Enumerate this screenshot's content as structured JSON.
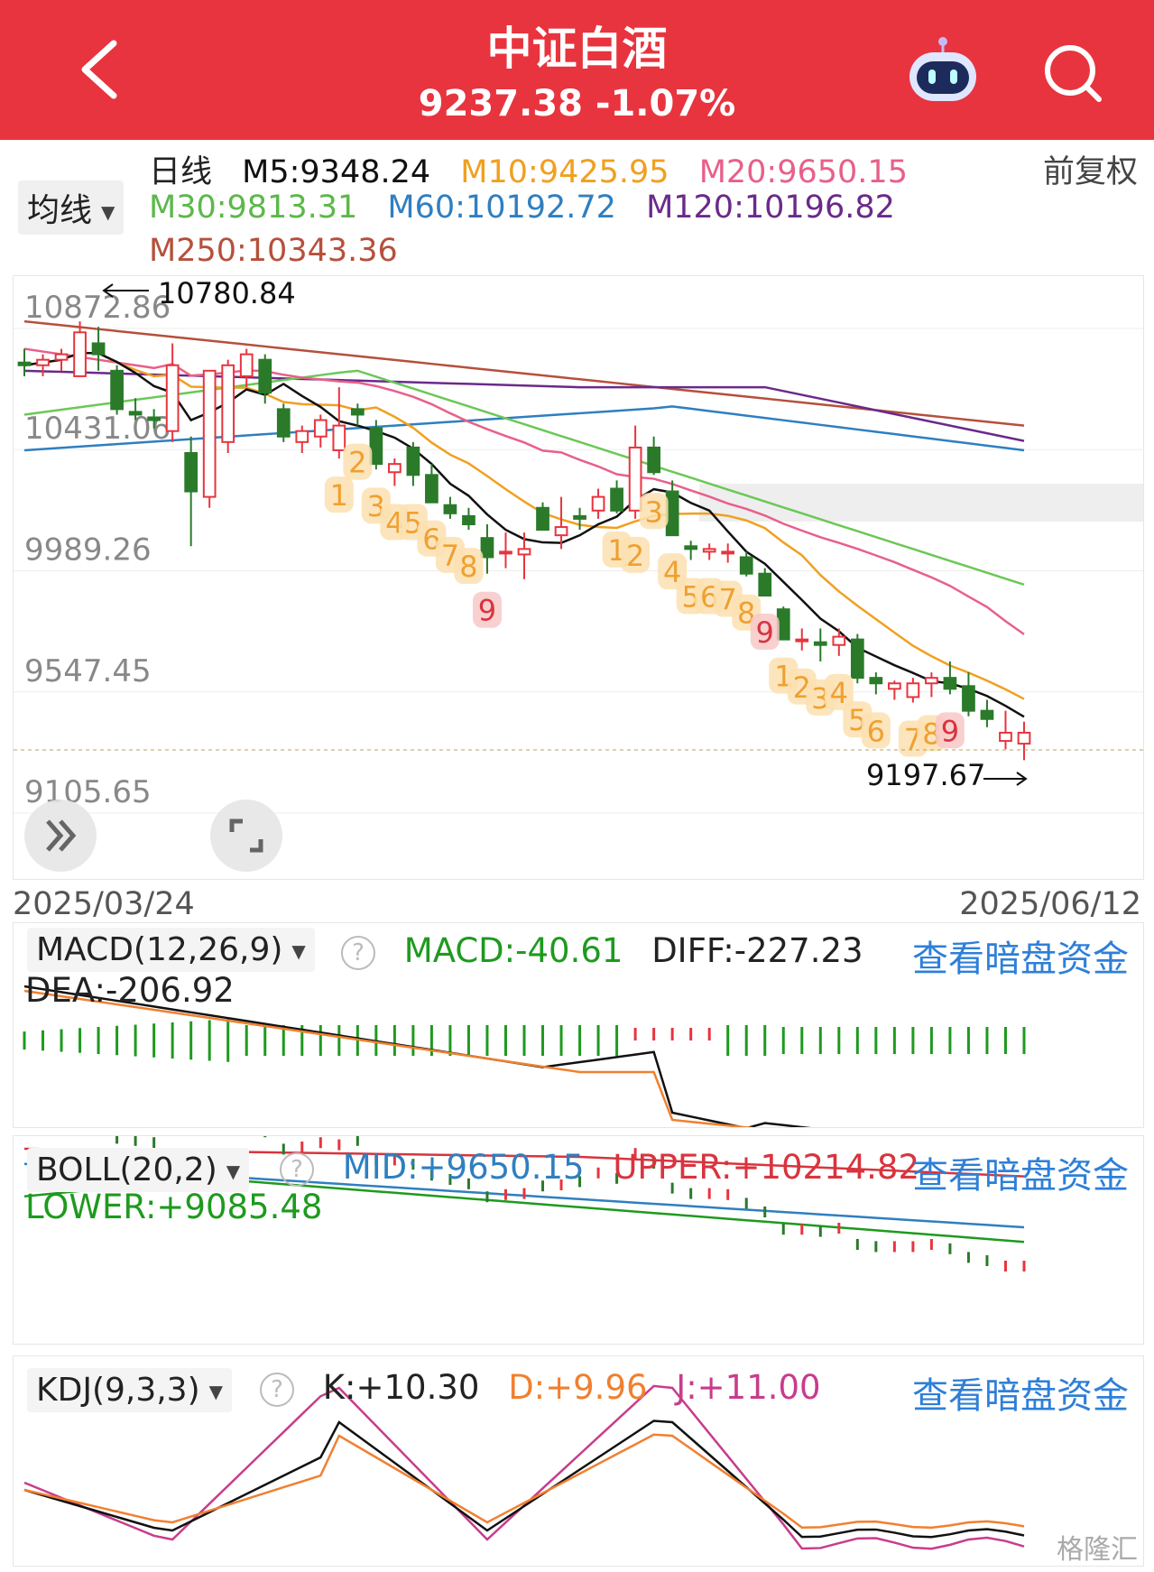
{
  "header": {
    "title": "中证白酒",
    "price": "9237.38",
    "change": "-1.07%"
  },
  "toolbar": {
    "period": "日线",
    "adjust": "前复权",
    "selector": "均线"
  },
  "ma": {
    "m5": "M5:9348.24",
    "m10": "M10:9425.95",
    "m20": "M20:9650.15",
    "m30": "M30:9813.31",
    "m60": "M60:10192.72",
    "m120": "M120:10196.82",
    "m250": "M250:10343.36"
  },
  "colors": {
    "up": "#e8343e",
    "down": "#2a7a2a",
    "m5": "#111111",
    "m10": "#f0a020",
    "m20": "#e8608a",
    "m30": "#6bc856",
    "m60": "#2f7fc0",
    "m120": "#6a2a8a",
    "m250": "#b5503c"
  },
  "chart_data": {
    "type": "candlestick",
    "y_ticks": [
      "10872.86",
      "10431.06",
      "9989.26",
      "9547.45",
      "9105.65"
    ],
    "ylim": [
      9105.65,
      10872.86
    ],
    "high_label": "10780.84",
    "low_label": "9197.67",
    "start_date": "2025/03/24",
    "end_date": "2025/06/12",
    "counts": [
      "1",
      "2",
      "3",
      "4",
      "5",
      "6",
      "7",
      "8",
      "9",
      "1",
      "2",
      "3",
      "4",
      "5",
      "6",
      "7",
      "8",
      "9",
      "1",
      "2",
      "3",
      "4",
      "5",
      "6",
      "7",
      "8",
      "9"
    ],
    "candles": [
      [
        10650,
        10700,
        10600,
        10640
      ],
      [
        10640,
        10680,
        10600,
        10660
      ],
      [
        10660,
        10700,
        10620,
        10680
      ],
      [
        10600,
        10800,
        10600,
        10760
      ],
      [
        10720,
        10780,
        10620,
        10680
      ],
      [
        10620,
        10640,
        10460,
        10480
      ],
      [
        10470,
        10520,
        10440,
        10460
      ],
      [
        10450,
        10480,
        10410,
        10440
      ],
      [
        10400,
        10720,
        10360,
        10640
      ],
      [
        10320,
        10380,
        9980,
        10180
      ],
      [
        10160,
        10620,
        10120,
        10620
      ],
      [
        10360,
        10660,
        10320,
        10640
      ],
      [
        10600,
        10700,
        10560,
        10680
      ],
      [
        10660,
        10680,
        10500,
        10540
      ],
      [
        10480,
        10500,
        10360,
        10380
      ],
      [
        10360,
        10420,
        10320,
        10400
      ],
      [
        10380,
        10460,
        10340,
        10440
      ],
      [
        10330,
        10560,
        10300,
        10420
      ],
      [
        10480,
        10500,
        10420,
        10460
      ],
      [
        10410,
        10440,
        10260,
        10280
      ],
      [
        10250,
        10300,
        10200,
        10280
      ],
      [
        10340,
        10360,
        10200,
        10240
      ],
      [
        10240,
        10280,
        10140,
        10140
      ],
      [
        10130,
        10160,
        10080,
        10100
      ],
      [
        10090,
        10120,
        10040,
        10060
      ],
      [
        10010,
        10060,
        9880,
        9940
      ],
      [
        9960,
        10030,
        9900,
        9960
      ],
      [
        9950,
        10030,
        9860,
        9970
      ],
      [
        10120,
        10140,
        10040,
        10040
      ],
      [
        10020,
        10160,
        9970,
        10050
      ],
      [
        10090,
        10120,
        10040,
        10080
      ],
      [
        10110,
        10190,
        10080,
        10160
      ],
      [
        10190,
        10220,
        10100,
        10110
      ],
      [
        10110,
        10420,
        10080,
        10340
      ],
      [
        10340,
        10380,
        10240,
        10250
      ],
      [
        10180,
        10220,
        10020,
        10020
      ],
      [
        9980,
        10000,
        9930,
        9970
      ],
      [
        9960,
        9990,
        9930,
        9970
      ],
      [
        9960,
        9990,
        9920,
        9960
      ],
      [
        9940,
        9960,
        9870,
        9880
      ],
      [
        9880,
        9900,
        9800,
        9800
      ],
      [
        9750,
        9760,
        9640,
        9640
      ],
      [
        9640,
        9680,
        9600,
        9640
      ],
      [
        9630,
        9680,
        9560,
        9620
      ],
      [
        9620,
        9680,
        9580,
        9650
      ],
      [
        9640,
        9660,
        9480,
        9500
      ],
      [
        9500,
        9520,
        9440,
        9480
      ],
      [
        9460,
        9490,
        9420,
        9480
      ],
      [
        9430,
        9500,
        9410,
        9480
      ],
      [
        9480,
        9520,
        9430,
        9500
      ],
      [
        9500,
        9560,
        9440,
        9460
      ],
      [
        9470,
        9520,
        9360,
        9380
      ],
      [
        9380,
        9420,
        9320,
        9350
      ],
      [
        9270,
        9380,
        9240,
        9300
      ],
      [
        9260,
        9340,
        9200,
        9300
      ]
    ],
    "macd_label": "MACD(12,26,9)",
    "macd": "MACD:-40.61",
    "diff": "DIFF:-227.23",
    "dea": "DEA:-206.92",
    "boll_label": "BOLL(20,2)",
    "boll_mid": "MID:+9650.15",
    "boll_upper": "UPPER:+10214.82",
    "boll_lower": "LOWER:+9085.48",
    "kdj_label": "KDJ(9,3,3)",
    "k": "K:+10.30",
    "d": "D:+9.96",
    "j": "J:+11.00"
  },
  "links": {
    "dark_pool": "查看暗盘资金"
  },
  "watermark": "格隆汇"
}
